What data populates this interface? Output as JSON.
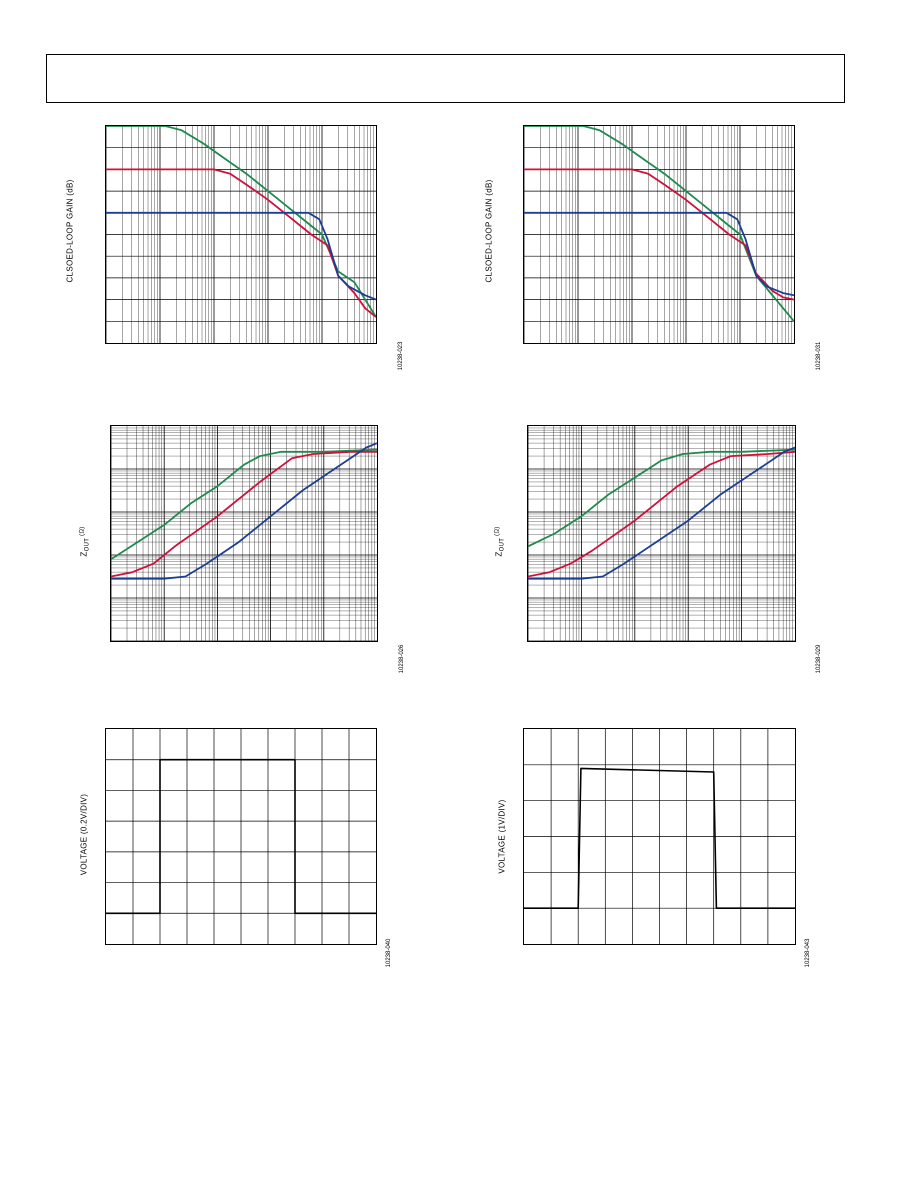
{
  "page": {
    "figures": [
      {
        "id": "f1",
        "ylabel": "CLSOED-LOOP GAIN (dB)",
        "code": "10238-023"
      },
      {
        "id": "f2",
        "ylabel": "CLSOED-LOOP GAIN (dB)",
        "code": "10238-031"
      },
      {
        "id": "f3",
        "ylabel_main": "Z",
        "ylabel_sub": "OUT",
        "ylabel_unit": " (Ω)",
        "code": "10238-026"
      },
      {
        "id": "f4",
        "ylabel_main": "Z",
        "ylabel_sub": "OUT",
        "ylabel_unit": " (Ω)",
        "code": "10238-029"
      },
      {
        "id": "f5",
        "ylabel": "VOLTAGE (0.2V/DIV)",
        "code": "10238-040"
      },
      {
        "id": "f6",
        "ylabel": "VOLTAGE (1V/DIV)",
        "code": "10238-043"
      }
    ]
  },
  "colors": {
    "green": "#1f8a4c",
    "red": "#d0103a",
    "blue": "#1c3f94",
    "grid": "#000000"
  },
  "chart_data": [
    {
      "id": "f1",
      "type": "line",
      "x_scale": "log",
      "x_decades": 5,
      "y_divisions": 10,
      "series": [
        {
          "color": "green",
          "values": [
            [
              0,
              10
            ],
            [
              1.1,
              10
            ],
            [
              1.4,
              9.8
            ],
            [
              1.8,
              9.2
            ],
            [
              2.2,
              8.5
            ],
            [
              2.6,
              7.8
            ],
            [
              3.0,
              7.0
            ],
            [
              3.3,
              6.4
            ],
            [
              3.7,
              5.6
            ],
            [
              4.0,
              5.0
            ],
            [
              4.3,
              3.3
            ],
            [
              4.6,
              2.8
            ],
            [
              5.0,
              1.2
            ]
          ]
        },
        {
          "color": "red",
          "values": [
            [
              0,
              8
            ],
            [
              2.0,
              8
            ],
            [
              2.3,
              7.8
            ],
            [
              2.6,
              7.3
            ],
            [
              3.0,
              6.6
            ],
            [
              3.4,
              5.8
            ],
            [
              3.8,
              5.0
            ],
            [
              4.1,
              4.5
            ],
            [
              4.3,
              3.1
            ],
            [
              4.6,
              2.3
            ],
            [
              4.8,
              1.6
            ],
            [
              5.0,
              1.2
            ]
          ]
        },
        {
          "color": "blue",
          "values": [
            [
              0,
              6
            ],
            [
              3.5,
              6
            ],
            [
              3.75,
              6
            ],
            [
              3.95,
              5.7
            ],
            [
              4.1,
              4.8
            ],
            [
              4.3,
              3.1
            ],
            [
              4.5,
              2.6
            ],
            [
              4.8,
              2.2
            ],
            [
              5.0,
              2.0
            ]
          ]
        }
      ]
    },
    {
      "id": "f2",
      "type": "line",
      "x_scale": "log",
      "x_decades": 5,
      "y_divisions": 10,
      "series": [
        {
          "color": "green",
          "values": [
            [
              0,
              10
            ],
            [
              1.1,
              10
            ],
            [
              1.4,
              9.8
            ],
            [
              1.8,
              9.2
            ],
            [
              2.2,
              8.5
            ],
            [
              2.6,
              7.8
            ],
            [
              3.0,
              7.0
            ],
            [
              3.3,
              6.4
            ],
            [
              3.7,
              5.6
            ],
            [
              4.0,
              5.0
            ],
            [
              4.3,
              3.1
            ],
            [
              4.6,
              2.2
            ],
            [
              5.0,
              1.0
            ]
          ]
        },
        {
          "color": "red",
          "values": [
            [
              0,
              8
            ],
            [
              2.0,
              8
            ],
            [
              2.3,
              7.8
            ],
            [
              2.6,
              7.3
            ],
            [
              3.0,
              6.6
            ],
            [
              3.4,
              5.8
            ],
            [
              3.8,
              5.0
            ],
            [
              4.1,
              4.5
            ],
            [
              4.3,
              3.2
            ],
            [
              4.6,
              2.4
            ],
            [
              4.8,
              2.1
            ],
            [
              5.0,
              2.0
            ]
          ]
        },
        {
          "color": "blue",
          "values": [
            [
              0,
              6
            ],
            [
              3.5,
              6
            ],
            [
              3.75,
              6
            ],
            [
              3.95,
              5.7
            ],
            [
              4.1,
              4.8
            ],
            [
              4.3,
              3.1
            ],
            [
              4.5,
              2.6
            ],
            [
              4.8,
              2.3
            ],
            [
              5.0,
              2.2
            ]
          ]
        }
      ]
    },
    {
      "id": "f3",
      "type": "line",
      "x_scale": "log",
      "y_scale": "log",
      "x_decades": 5,
      "y_decades": 5,
      "series": [
        {
          "color": "green",
          "values": [
            [
              0,
              1.9
            ],
            [
              0.5,
              2.3
            ],
            [
              1.0,
              2.7
            ],
            [
              1.5,
              3.2
            ],
            [
              2.0,
              3.6
            ],
            [
              2.5,
              4.1
            ],
            [
              2.8,
              4.3
            ],
            [
              3.2,
              4.4
            ],
            [
              4.0,
              4.4
            ],
            [
              5.0,
              4.45
            ]
          ]
        },
        {
          "color": "red",
          "values": [
            [
              0,
              1.5
            ],
            [
              0.4,
              1.6
            ],
            [
              0.8,
              1.8
            ],
            [
              1.2,
              2.2
            ],
            [
              2.0,
              2.9
            ],
            [
              2.8,
              3.7
            ],
            [
              3.4,
              4.25
            ],
            [
              3.8,
              4.35
            ],
            [
              4.5,
              4.4
            ],
            [
              5.0,
              4.4
            ]
          ]
        },
        {
          "color": "blue",
          "values": [
            [
              0,
              1.45
            ],
            [
              0.5,
              1.45
            ],
            [
              1.0,
              1.45
            ],
            [
              1.4,
              1.5
            ],
            [
              1.8,
              1.8
            ],
            [
              2.4,
              2.3
            ],
            [
              3.0,
              2.9
            ],
            [
              3.6,
              3.5
            ],
            [
              4.2,
              4.0
            ],
            [
              4.8,
              4.5
            ],
            [
              5.0,
              4.6
            ]
          ]
        }
      ]
    },
    {
      "id": "f4",
      "type": "line",
      "x_scale": "log",
      "y_scale": "log",
      "x_decades": 5,
      "y_decades": 5,
      "series": [
        {
          "color": "green",
          "values": [
            [
              0,
              2.2
            ],
            [
              0.5,
              2.5
            ],
            [
              1.0,
              2.9
            ],
            [
              1.5,
              3.4
            ],
            [
              2.0,
              3.8
            ],
            [
              2.5,
              4.2
            ],
            [
              2.9,
              4.35
            ],
            [
              3.4,
              4.4
            ],
            [
              4.0,
              4.4
            ],
            [
              5.0,
              4.45
            ]
          ]
        },
        {
          "color": "red",
          "values": [
            [
              0,
              1.5
            ],
            [
              0.4,
              1.6
            ],
            [
              0.8,
              1.8
            ],
            [
              1.2,
              2.1
            ],
            [
              2.0,
              2.8
            ],
            [
              2.8,
              3.6
            ],
            [
              3.4,
              4.1
            ],
            [
              3.8,
              4.3
            ],
            [
              4.5,
              4.35
            ],
            [
              5.0,
              4.4
            ]
          ]
        },
        {
          "color": "blue",
          "values": [
            [
              0,
              1.45
            ],
            [
              0.5,
              1.45
            ],
            [
              1.0,
              1.45
            ],
            [
              1.4,
              1.5
            ],
            [
              1.8,
              1.8
            ],
            [
              2.4,
              2.3
            ],
            [
              3.0,
              2.8
            ],
            [
              3.6,
              3.4
            ],
            [
              4.2,
              3.9
            ],
            [
              4.8,
              4.4
            ],
            [
              5.0,
              4.5
            ]
          ]
        }
      ]
    },
    {
      "id": "f5",
      "type": "line",
      "x_divisions": 10,
      "y_divisions": 7,
      "series": [
        {
          "color": "black",
          "values": [
            [
              0,
              1
            ],
            [
              2.0,
              1
            ],
            [
              2.0,
              6
            ],
            [
              7.0,
              6
            ],
            [
              7.0,
              1
            ],
            [
              10,
              1
            ]
          ]
        }
      ]
    },
    {
      "id": "f6",
      "type": "line",
      "x_divisions": 10,
      "y_divisions": 6,
      "series": [
        {
          "color": "black",
          "values": [
            [
              0,
              1
            ],
            [
              2.0,
              1
            ],
            [
              2.1,
              4.9
            ],
            [
              7.0,
              4.8
            ],
            [
              7.1,
              1
            ],
            [
              10,
              1
            ]
          ]
        }
      ]
    }
  ]
}
